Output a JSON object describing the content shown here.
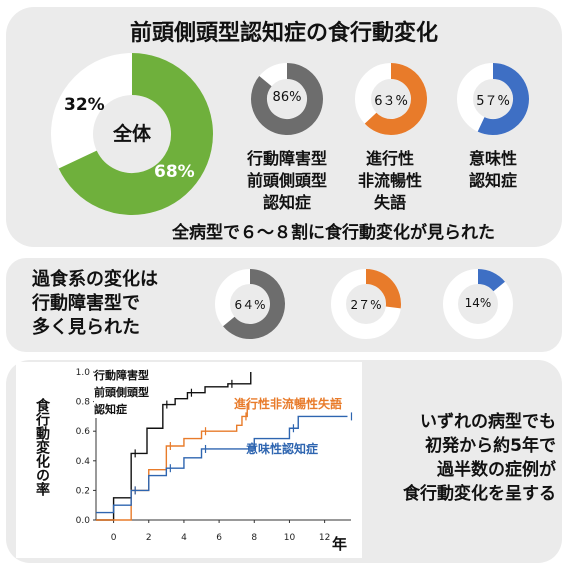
{
  "title": "前頭側頭型認知症の食行動変化",
  "overall": {
    "label": "全体",
    "pct_yes": 68,
    "pct_no": 32,
    "pct_yes_label": "68%",
    "pct_no_label": "32%",
    "colors": {
      "yes": "#6fb03c",
      "no": "#ffffff"
    }
  },
  "subtypes": [
    {
      "pct": 86,
      "pct_label": "86%",
      "name_lines": [
        "行動障害型",
        "前頭側頭型",
        "認知症"
      ],
      "color": "#6d6d6d"
    },
    {
      "pct": 63,
      "pct_label": "6３%",
      "name_lines": [
        "進行性",
        "非流暢性",
        "失語"
      ],
      "color": "#e87b2a"
    },
    {
      "pct": 57,
      "pct_label": "5７%",
      "name_lines": [
        "意味性",
        "認知症"
      ],
      "color": "#3e6fc4"
    }
  ],
  "summary_1": "全病型で６～８割に食行動変化が見られた",
  "overeating": {
    "text_lines": [
      "過食系の変化は",
      "行動障害型で",
      "多く見られた"
    ],
    "donuts": [
      {
        "pct": 64,
        "pct_label": "6４%",
        "color": "#6d6d6d"
      },
      {
        "pct": 27,
        "pct_label": "2７%",
        "color": "#e87b2a"
      },
      {
        "pct": 14,
        "pct_label": "14%",
        "color": "#3e6fc4"
      }
    ]
  },
  "km": {
    "ylabel": "食行動変化の率",
    "xunit": "年",
    "label_bvftd_lines": [
      "行動障害型",
      "前頭側頭型",
      "認知症"
    ],
    "label_pnfa": "進行性非流暢性失語",
    "label_sd": "意味性認知症",
    "yticks": [
      "0.0",
      "0.2",
      "0.4",
      "0.6",
      "0.8",
      "1.0"
    ],
    "xticks": [
      "0",
      "2",
      "4",
      "6",
      "8",
      "10",
      "12"
    ]
  },
  "chart_data": {
    "type": "line",
    "xlabel": "年",
    "ylabel": "食行動変化の率",
    "xlim": [
      -1,
      13.5
    ],
    "ylim": [
      0,
      1.0
    ],
    "series": [
      {
        "name": "行動障害型前頭側頭型認知症",
        "color": "#111111",
        "x": [
          -1,
          0,
          1,
          1.9,
          2.8,
          3.5,
          4.2,
          5.2,
          6.5,
          7.8
        ],
        "y": [
          0.0,
          0.15,
          0.45,
          0.62,
          0.78,
          0.82,
          0.86,
          0.9,
          0.92,
          1.0
        ]
      },
      {
        "name": "進行性非流暢性失語",
        "color": "#e87b2a",
        "x": [
          -1,
          0,
          1,
          2,
          3,
          4,
          5,
          7,
          7.3,
          7.6
        ],
        "y": [
          0.0,
          0.0,
          0.2,
          0.34,
          0.5,
          0.55,
          0.6,
          0.64,
          0.7,
          0.78
        ]
      },
      {
        "name": "意味性認知症",
        "color": "#2e65b0",
        "x": [
          -1,
          0,
          1,
          2,
          3,
          4,
          5,
          8,
          10,
          10.5,
          13.3
        ],
        "y": [
          0.05,
          0.1,
          0.2,
          0.3,
          0.35,
          0.42,
          0.48,
          0.55,
          0.62,
          0.7,
          0.7
        ]
      }
    ]
  },
  "summary_2_lines": [
    "いずれの病型でも",
    "初発から約5年で",
    "過半数の症例が",
    "食行動変化を呈する"
  ]
}
